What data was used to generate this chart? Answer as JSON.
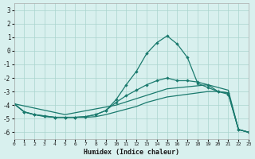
{
  "xlabel": "Humidex (Indice chaleur)",
  "xlim": [
    0,
    23
  ],
  "ylim": [
    -6.5,
    3.5
  ],
  "xticks": [
    0,
    1,
    2,
    3,
    4,
    5,
    6,
    7,
    8,
    9,
    10,
    11,
    12,
    13,
    14,
    15,
    16,
    17,
    18,
    19,
    20,
    21,
    22,
    23
  ],
  "yticks": [
    -6,
    -5,
    -4,
    -3,
    -2,
    -1,
    0,
    1,
    2,
    3
  ],
  "bg_color": "#d8f0ee",
  "grid_color": "#aad4ce",
  "line_color": "#1a7a6e",
  "line1_x": [
    0,
    1,
    2,
    3,
    4,
    5,
    6,
    7,
    8,
    9,
    10,
    11,
    12,
    13,
    14,
    15,
    16,
    17,
    18,
    19,
    20,
    21,
    22,
    23
  ],
  "line1_y": [
    -3.9,
    -4.5,
    -4.7,
    -4.8,
    -4.9,
    -4.9,
    -4.9,
    -4.85,
    -4.7,
    -4.4,
    -3.6,
    -2.5,
    -1.5,
    -0.2,
    0.6,
    1.1,
    0.5,
    -0.5,
    -2.4,
    -2.7,
    -3.0,
    -3.2,
    -5.8,
    -6.0
  ],
  "line2_x": [
    0,
    1,
    2,
    3,
    4,
    5,
    6,
    7,
    8,
    9,
    10,
    11,
    12,
    13,
    14,
    15,
    16,
    17,
    18,
    19,
    20,
    21,
    22,
    23
  ],
  "line2_y": [
    -3.9,
    -4.5,
    -4.7,
    -4.8,
    -4.9,
    -4.9,
    -4.9,
    -4.85,
    -4.7,
    -4.4,
    -3.8,
    -3.3,
    -2.9,
    -2.5,
    -2.2,
    -2.0,
    -2.2,
    -2.2,
    -2.3,
    -2.5,
    -3.0,
    -3.1,
    -5.8,
    -6.0
  ],
  "line3_x": [
    0,
    5,
    10,
    15,
    19,
    21,
    22,
    23
  ],
  "line3_y": [
    -3.9,
    -4.7,
    -4.0,
    -2.8,
    -2.5,
    -2.9,
    -5.8,
    -6.0
  ],
  "line4_x": [
    0,
    1,
    2,
    3,
    4,
    5,
    6,
    7,
    8,
    9,
    10,
    11,
    12,
    13,
    14,
    15,
    16,
    17,
    18,
    19,
    20,
    21,
    22,
    23
  ],
  "line4_y": [
    -3.9,
    -4.5,
    -4.7,
    -4.85,
    -4.9,
    -4.9,
    -4.9,
    -4.9,
    -4.85,
    -4.7,
    -4.5,
    -4.3,
    -4.1,
    -3.8,
    -3.6,
    -3.4,
    -3.3,
    -3.2,
    -3.1,
    -3.0,
    -3.0,
    -3.1,
    -5.8,
    -6.0
  ]
}
